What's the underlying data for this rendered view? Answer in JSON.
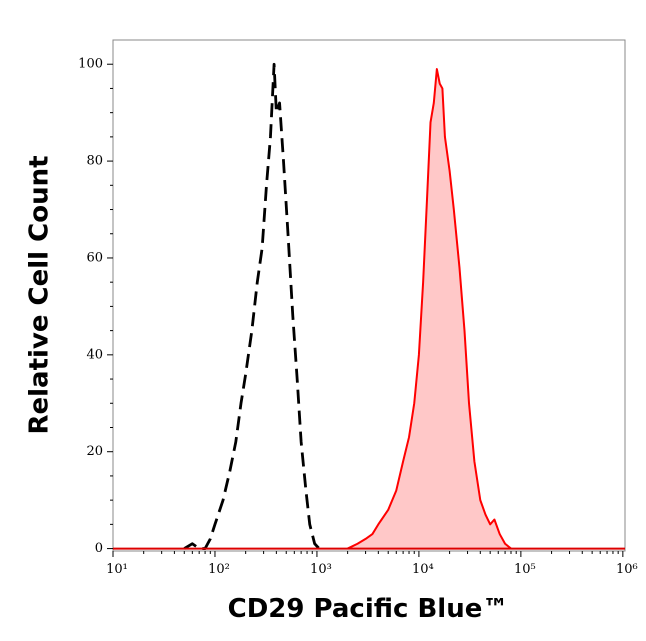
{
  "chart_data": {
    "type": "histogram-overlay",
    "x_label": "CD29 Pacific Blue™",
    "y_label": "Relative Cell Count",
    "log_x": true,
    "xlim": [
      10,
      1050000
    ],
    "ylim": [
      -0.5,
      105
    ],
    "xticks": [
      {
        "value": 10,
        "label": "10¹"
      },
      {
        "value": 100,
        "label": "10²"
      },
      {
        "value": 1000,
        "label": "10³"
      },
      {
        "value": 10000,
        "label": "10⁴"
      },
      {
        "value": 100000,
        "label": "10⁵"
      },
      {
        "value": 1000000,
        "label": "10⁶"
      }
    ],
    "yticks": [
      0,
      20,
      40,
      60,
      80,
      100
    ],
    "series": [
      {
        "color": "#000000",
        "style": "dashed",
        "filled": false,
        "x": [
          50,
          60,
          70,
          80,
          90,
          100,
          120,
          140,
          160,
          180,
          200,
          230,
          260,
          290,
          320,
          350,
          380,
          400,
          430,
          470,
          520,
          580,
          640,
          700,
          780,
          850,
          950,
          1050
        ],
        "values": [
          0,
          1,
          0,
          0,
          2,
          5,
          10,
          16,
          22,
          30,
          36,
          45,
          55,
          62,
          75,
          85,
          100,
          90,
          92,
          80,
          65,
          48,
          35,
          22,
          12,
          5,
          1,
          0
        ]
      },
      {
        "color": "#ff0000",
        "style": "solid",
        "filled": true,
        "fill": "#ffc8c8",
        "x": [
          2000,
          2500,
          3000,
          3500,
          4000,
          5000,
          6000,
          7000,
          8000,
          9000,
          10000,
          11000,
          12000,
          13000,
          14000,
          15000,
          16000,
          17000,
          18000,
          20000,
          22000,
          25000,
          28000,
          31000,
          35000,
          40000,
          45000,
          50000,
          55000,
          62000,
          70000,
          80000
        ],
        "values": [
          0,
          1,
          2,
          3,
          5,
          8,
          12,
          18,
          23,
          30,
          40,
          55,
          72,
          88,
          92,
          99,
          96,
          95,
          85,
          78,
          70,
          58,
          45,
          30,
          18,
          10,
          7,
          5,
          6,
          3,
          1,
          0
        ]
      }
    ]
  }
}
